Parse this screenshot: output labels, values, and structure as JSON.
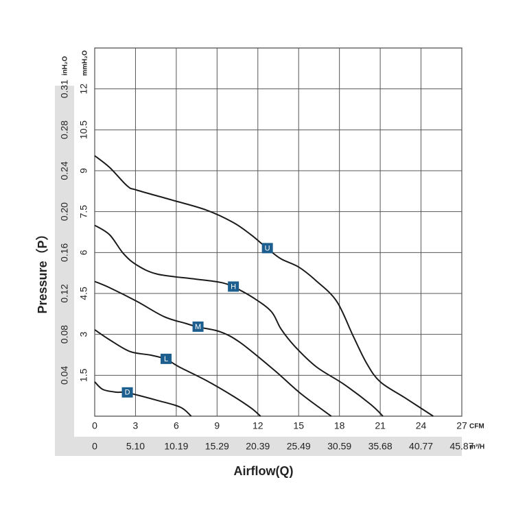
{
  "chart_data": {
    "type": "line",
    "xlabel": "Airflow(Q)",
    "ylabel": "Pressure（P）",
    "y_unit": "mmH₂O",
    "y2_unit": "inH₂O",
    "x_unit": "CFM",
    "x2_unit": "m³/H",
    "xlim": [
      0,
      27
    ],
    "ylim": [
      0,
      13.5
    ],
    "xticks": [
      0,
      3,
      6,
      9,
      12,
      15,
      18,
      21,
      24,
      27
    ],
    "yticks": [
      1.5,
      3,
      4.5,
      6,
      7.5,
      9,
      10.5,
      12
    ],
    "x2ticks": [
      0,
      {
        "value": 5.1,
        "label": "5.10"
      },
      10.19,
      15.29,
      20.39,
      25.49,
      30.59,
      35.68,
      40.77,
      45.87
    ],
    "y2ticks": [
      0.04,
      0.08,
      0.12,
      0.16,
      {
        "value": 0.2,
        "label": "0.20"
      },
      0.24,
      0.28,
      0.31
    ],
    "grid": true,
    "marker_color": "#1c5f8f",
    "series": [
      {
        "name": "U",
        "color": "#1a1a1a",
        "x": [
          0,
          1.1,
          2.4,
          3.1,
          5.65,
          8.2,
          10.2,
          11.5,
          12.7,
          13.7,
          15.0,
          16.3,
          17.8,
          19.0,
          20.0,
          21.0,
          22.8,
          24.9
        ],
        "values": [
          9.55,
          9.12,
          8.44,
          8.29,
          7.93,
          7.56,
          7.1,
          6.65,
          6.15,
          5.77,
          5.47,
          4.96,
          4.21,
          2.95,
          1.94,
          1.26,
          0.68,
          0
        ]
      },
      {
        "name": "H",
        "color": "#1a1a1a",
        "x": [
          0,
          1.1,
          2.1,
          3.1,
          4.6,
          7.2,
          9.2,
          10.2,
          11.7,
          13.0,
          13.7,
          14.7,
          16.3,
          18.3,
          20.3,
          21.2
        ],
        "values": [
          7.0,
          6.65,
          5.97,
          5.54,
          5.21,
          5.04,
          4.91,
          4.74,
          4.33,
          3.83,
          3.2,
          2.57,
          1.81,
          1.18,
          0.43,
          0
        ]
      },
      {
        "name": "M",
        "color": "#1a1a1a",
        "x": [
          0,
          1.1,
          3.1,
          5.1,
          6.7,
          7.6,
          9.2,
          10.7,
          13.2,
          15.2,
          17.4
        ],
        "values": [
          4.94,
          4.71,
          4.21,
          3.65,
          3.4,
          3.27,
          3.1,
          2.7,
          1.69,
          0.81,
          0
        ]
      },
      {
        "name": "L",
        "color": "#1a1a1a",
        "x": [
          0,
          1.1,
          2.6,
          4.1,
          5.25,
          6.2,
          8.2,
          10.2,
          11.5,
          12.2
        ],
        "values": [
          3.17,
          2.8,
          2.37,
          2.24,
          2.09,
          1.81,
          1.31,
          0.73,
          0.3,
          0
        ]
      },
      {
        "name": "D",
        "color": "#1a1a1a",
        "x": [
          0,
          0.6,
          1.6,
          2.4,
          4.6,
          6.3,
          7.1
        ],
        "values": [
          1.26,
          0.98,
          0.88,
          0.86,
          0.58,
          0.33,
          0
        ]
      }
    ]
  }
}
